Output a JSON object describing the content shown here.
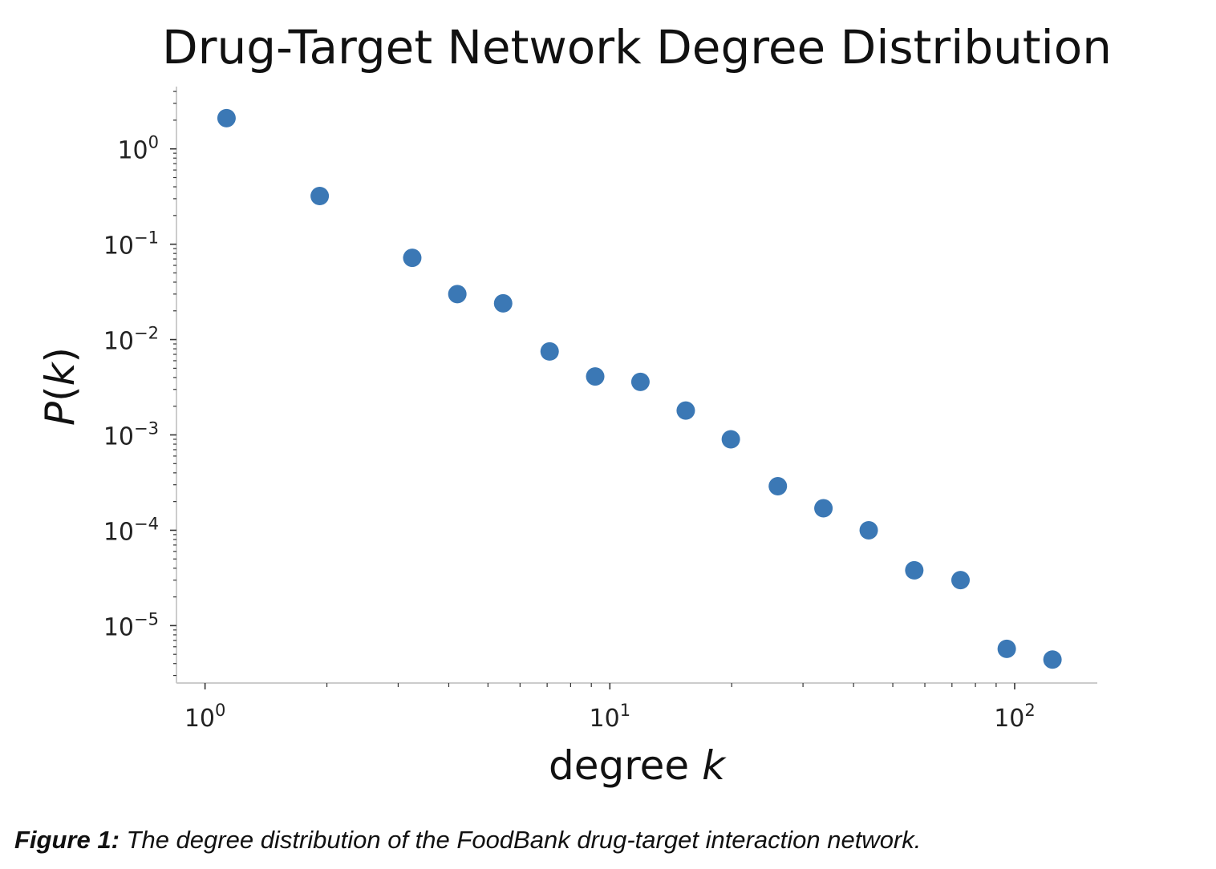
{
  "chart_data": {
    "type": "scatter",
    "title": "Drug-Target Network Degree Distribution",
    "xlabel": "degree k",
    "ylabel": "P(k)",
    "xscale": "log",
    "yscale": "log",
    "xlim": [
      0.85,
      160
    ],
    "ylim": [
      2.5e-06,
      4.5
    ],
    "x_ticks": [
      {
        "value": 1,
        "base": "10",
        "exp": "0"
      },
      {
        "value": 10,
        "base": "10",
        "exp": "1"
      },
      {
        "value": 100,
        "base": "10",
        "exp": "2"
      }
    ],
    "y_ticks": [
      {
        "value": 1,
        "base": "10",
        "exp": "0"
      },
      {
        "value": 0.1,
        "base": "10",
        "exp": "−1"
      },
      {
        "value": 0.01,
        "base": "10",
        "exp": "−2"
      },
      {
        "value": 0.001,
        "base": "10",
        "exp": "−3"
      },
      {
        "value": 0.0001,
        "base": "10",
        "exp": "−4"
      },
      {
        "value": 1e-05,
        "base": "10",
        "exp": "−5"
      }
    ],
    "grid": false,
    "marker_color": "#3b78b5",
    "points": [
      {
        "x": 1.13,
        "y": 2.1
      },
      {
        "x": 1.92,
        "y": 0.32
      },
      {
        "x": 3.25,
        "y": 0.072
      },
      {
        "x": 4.2,
        "y": 0.03
      },
      {
        "x": 5.45,
        "y": 0.024
      },
      {
        "x": 7.1,
        "y": 0.0075
      },
      {
        "x": 9.2,
        "y": 0.0041
      },
      {
        "x": 11.9,
        "y": 0.0036
      },
      {
        "x": 15.4,
        "y": 0.0018
      },
      {
        "x": 19.9,
        "y": 0.0009
      },
      {
        "x": 26.0,
        "y": 0.00029
      },
      {
        "x": 33.7,
        "y": 0.00017
      },
      {
        "x": 43.6,
        "y": 0.0001
      },
      {
        "x": 56.5,
        "y": 3.8e-05
      },
      {
        "x": 73.5,
        "y": 3e-05
      },
      {
        "x": 95.6,
        "y": 5.7e-06
      },
      {
        "x": 124.0,
        "y": 4.4e-06
      }
    ]
  },
  "caption": {
    "label": "Figure 1:",
    "text": " The degree distribution of the FoodBank drug-target interaction network."
  }
}
